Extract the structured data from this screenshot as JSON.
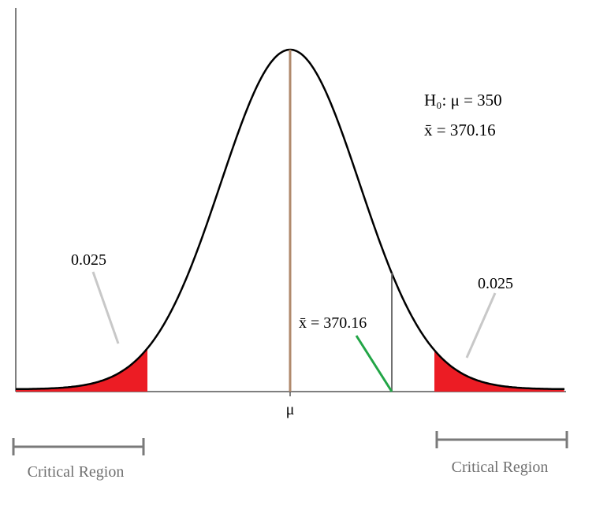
{
  "labels": {
    "hypothesis": "H₀: μ = 350",
    "sample_mean_header": "x̄ = 370.16",
    "sample_mean_marker": "x̄ = 370.16",
    "mu_tick": "μ",
    "left_tail_prob": "0.025",
    "right_tail_prob": "0.025",
    "left_region": "Critical Region",
    "right_region": "Critical Region"
  },
  "colors": {
    "curve": "#000000",
    "tail_fill": "#ec1c24",
    "mean_line": "#b08a6c",
    "xbar_line": "#707070",
    "pointer_gray": "#c8c8c8",
    "pointer_green": "#22a546",
    "bracket": "#7a7a7a",
    "region_text": "#707070",
    "axis": "#555555"
  }
}
